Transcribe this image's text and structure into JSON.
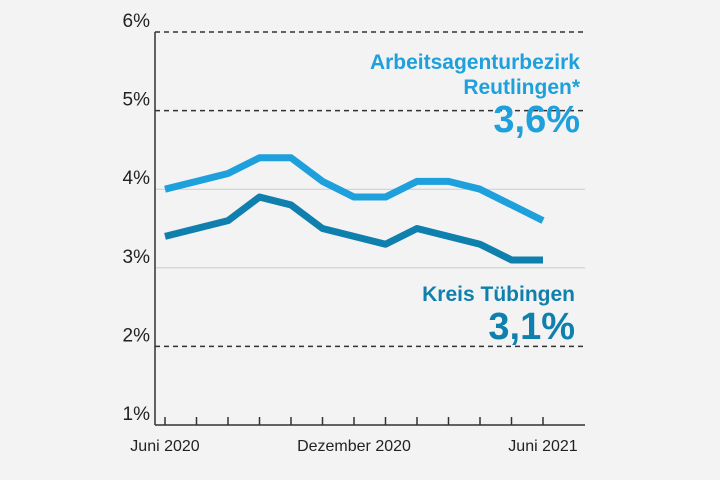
{
  "chart_data": {
    "type": "line",
    "categories": [
      "Juni 2020",
      null,
      null,
      null,
      null,
      null,
      "Dezember 2020",
      null,
      null,
      null,
      null,
      null,
      "Juni 2021"
    ],
    "series": [
      {
        "name": "Arbeitsagenturbezirk Reutlingen*",
        "color": "#1ea0dc",
        "end_label": "3,6%",
        "values": [
          4.0,
          4.1,
          4.2,
          4.4,
          4.4,
          4.1,
          3.9,
          3.9,
          4.1,
          4.1,
          4.0,
          3.8,
          3.6
        ]
      },
      {
        "name": "Kreis Tübingen",
        "color": "#0f80ad",
        "end_label": "3,1%",
        "values": [
          3.4,
          3.5,
          3.6,
          3.9,
          3.8,
          3.5,
          3.4,
          3.3,
          3.5,
          3.4,
          3.3,
          3.1,
          3.1
        ]
      }
    ],
    "ylim": [
      1,
      6
    ],
    "yticks": [
      {
        "value": 1,
        "label": "1%"
      },
      {
        "value": 2,
        "label": "2%"
      },
      {
        "value": 3,
        "label": "3%"
      },
      {
        "value": 4,
        "label": "4%"
      },
      {
        "value": 5,
        "label": "5%"
      },
      {
        "value": 6,
        "label": "6%"
      }
    ],
    "grid": true
  }
}
